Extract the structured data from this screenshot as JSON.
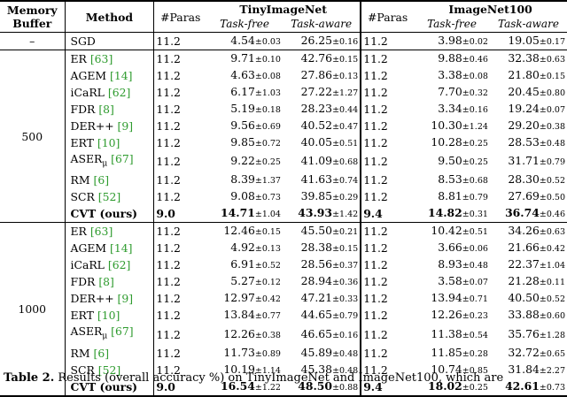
{
  "headers": {
    "memory_buffer_l1": "Memory",
    "memory_buffer_l2": "Buffer",
    "method": "Method",
    "paras": "#Paras",
    "tiny": "TinyImageNet",
    "imnet": "ImageNet100",
    "task_free": "Task-free",
    "task_aware": "Task-aware"
  },
  "sgd": {
    "buffer": "–",
    "method": "SGD",
    "p1": "11.2",
    "tf1": "4.54",
    "tf1s": "±0.03",
    "ta1": "26.25",
    "ta1s": "±0.16",
    "p2": "11.2",
    "tf2": "3.98",
    "tf2s": "±0.02",
    "ta2": "19.05",
    "ta2s": "±0.17"
  },
  "groups": [
    {
      "buffer": "500",
      "rows": [
        {
          "name": "ER",
          "cite": "[63]",
          "p1": "11.2",
          "tf1": "9.71",
          "tf1s": "±0.10",
          "ta1": "42.76",
          "ta1s": "±0.15",
          "p2": "11.2",
          "tf2": "9.88",
          "tf2s": "±0.46",
          "ta2": "32.38",
          "ta2s": "±0.63"
        },
        {
          "name": "AGEM",
          "cite": "[14]",
          "p1": "11.2",
          "tf1": "4.63",
          "tf1s": "±0.08",
          "ta1": "27.86",
          "ta1s": "±0.13",
          "p2": "11.2",
          "tf2": "3.38",
          "tf2s": "±0.08",
          "ta2": "21.80",
          "ta2s": "±0.15"
        },
        {
          "name": "iCaRL",
          "cite": "[62]",
          "p1": "11.2",
          "tf1": "6.17",
          "tf1s": "±1.03",
          "ta1": "27.22",
          "ta1s": "±1.27",
          "p2": "11.2",
          "tf2": "7.70",
          "tf2s": "±0.32",
          "ta2": "20.45",
          "ta2s": "±0.80"
        },
        {
          "name": "FDR",
          "cite": "[8]",
          "p1": "11.2",
          "tf1": "5.19",
          "tf1s": "±0.18",
          "ta1": "28.23",
          "ta1s": "±0.44",
          "p2": "11.2",
          "tf2": "3.34",
          "tf2s": "±0.16",
          "ta2": "19.24",
          "ta2s": "±0.07"
        },
        {
          "name": "DER++",
          "cite": "[9]",
          "p1": "11.2",
          "tf1": "9.56",
          "tf1s": "±0.69",
          "ta1": "40.52",
          "ta1s": "±0.47",
          "p2": "11.2",
          "tf2": "10.30",
          "tf2s": "±1.24",
          "ta2": "29.20",
          "ta2s": "±0.38"
        },
        {
          "name": "ERT",
          "cite": "[10]",
          "p1": "11.2",
          "tf1": "9.85",
          "tf1s": "±0.72",
          "ta1": "40.05",
          "ta1s": "±0.51",
          "p2": "11.2",
          "tf2": "10.28",
          "tf2s": "±0.25",
          "ta2": "28.53",
          "ta2s": "±0.48"
        },
        {
          "name": "ASER",
          "sub": "μ",
          "cite": "[67]",
          "p1": "11.2",
          "tf1": "9.22",
          "tf1s": "±0.25",
          "ta1": "41.09",
          "ta1s": "±0.68",
          "p2": "11.2",
          "tf2": "9.50",
          "tf2s": "±0.25",
          "ta2": "31.71",
          "ta2s": "±0.79"
        },
        {
          "name": "RM",
          "cite": "[6]",
          "p1": "11.2",
          "tf1": "8.39",
          "tf1s": "±1.37",
          "ta1": "41.63",
          "ta1s": "±0.74",
          "p2": "11.2",
          "tf2": "8.53",
          "tf2s": "±0.68",
          "ta2": "28.30",
          "ta2s": "±0.52"
        },
        {
          "name": "SCR",
          "cite": "[52]",
          "p1": "11.2",
          "tf1": "9.08",
          "tf1s": "±0.73",
          "ta1": "39.85",
          "ta1s": "±0.29",
          "p2": "11.2",
          "tf2": "8.81",
          "tf2s": "±0.79",
          "ta2": "27.69",
          "ta2s": "±0.50"
        },
        {
          "name": "CVT (ours)",
          "bold": true,
          "p1": "9.0",
          "tf1": "14.71",
          "tf1s": "±1.04",
          "ta1": "43.93",
          "ta1s": "±1.42",
          "p2": "9.4",
          "tf2": "14.82",
          "tf2s": "±0.31",
          "ta2": "36.74",
          "ta2s": "±0.46"
        }
      ]
    },
    {
      "buffer": "1000",
      "rows": [
        {
          "name": "ER",
          "cite": "[63]",
          "p1": "11.2",
          "tf1": "12.46",
          "tf1s": "±0.15",
          "ta1": "45.50",
          "ta1s": "±0.21",
          "p2": "11.2",
          "tf2": "10.42",
          "tf2s": "±0.51",
          "ta2": "34.26",
          "ta2s": "±0.63"
        },
        {
          "name": "AGEM",
          "cite": "[14]",
          "p1": "11.2",
          "tf1": "4.92",
          "tf1s": "±0.13",
          "ta1": "28.38",
          "ta1s": "±0.15",
          "p2": "11.2",
          "tf2": "3.66",
          "tf2s": "±0.06",
          "ta2": "21.66",
          "ta2s": "±0.42"
        },
        {
          "name": "iCaRL",
          "cite": "[62]",
          "p1": "11.2",
          "tf1": "6.91",
          "tf1s": "±0.52",
          "ta1": "28.56",
          "ta1s": "±0.37",
          "p2": "11.2",
          "tf2": "8.93",
          "tf2s": "±0.48",
          "ta2": "22.37",
          "ta2s": "±1.04"
        },
        {
          "name": "FDR",
          "cite": "[8]",
          "p1": "11.2",
          "tf1": "5.27",
          "tf1s": "±0.12",
          "ta1": "28.94",
          "ta1s": "±0.36",
          "p2": "11.2",
          "tf2": "3.58",
          "tf2s": "±0.07",
          "ta2": "21.28",
          "ta2s": "±0.11"
        },
        {
          "name": "DER++",
          "cite": "[9]",
          "p1": "11.2",
          "tf1": "12.97",
          "tf1s": "±0.42",
          "ta1": "47.21",
          "ta1s": "±0.33",
          "p2": "11.2",
          "tf2": "13.94",
          "tf2s": "±0.71",
          "ta2": "40.50",
          "ta2s": "±0.52"
        },
        {
          "name": "ERT",
          "cite": "[10]",
          "p1": "11.2",
          "tf1": "13.84",
          "tf1s": "±0.77",
          "ta1": "44.65",
          "ta1s": "±0.79",
          "p2": "11.2",
          "tf2": "12.26",
          "tf2s": "±0.23",
          "ta2": "33.88",
          "ta2s": "±0.60"
        },
        {
          "name": "ASER",
          "sub": "μ",
          "cite": "[67]",
          "p1": "11.2",
          "tf1": "12.26",
          "tf1s": "±0.38",
          "ta1": "46.65",
          "ta1s": "±0.16",
          "p2": "11.2",
          "tf2": "11.38",
          "tf2s": "±0.54",
          "ta2": "35.76",
          "ta2s": "±1.28"
        },
        {
          "name": "RM",
          "cite": "[6]",
          "p1": "11.2",
          "tf1": "11.73",
          "tf1s": "±0.89",
          "ta1": "45.89",
          "ta1s": "±0.48",
          "p2": "11.2",
          "tf2": "11.85",
          "tf2s": "±0.28",
          "ta2": "32.72",
          "ta2s": "±0.65"
        },
        {
          "name": "SCR",
          "cite": "[52]",
          "p1": "11.2",
          "tf1": "10.19",
          "tf1s": "±1.14",
          "ta1": "45.38",
          "ta1s": "±0.48",
          "p2": "11.2",
          "tf2": "10.74",
          "tf2s": "±0.85",
          "ta2": "31.84",
          "ta2s": "±2.27"
        },
        {
          "name": "CVT (ours)",
          "bold": true,
          "p1": "9.0",
          "tf1": "16.54",
          "tf1s": "±1.22",
          "ta1": "48.50",
          "ta1s": "±0.88",
          "p2": "9.4",
          "tf2": "18.02",
          "tf2s": "±0.25",
          "ta2": "42.61",
          "ta2s": "±0.73"
        }
      ]
    }
  ],
  "caption": {
    "label": "Table 2.",
    "text": " Results (overall accuracy %) on TinyImageNet and ImageNet100, which are"
  }
}
